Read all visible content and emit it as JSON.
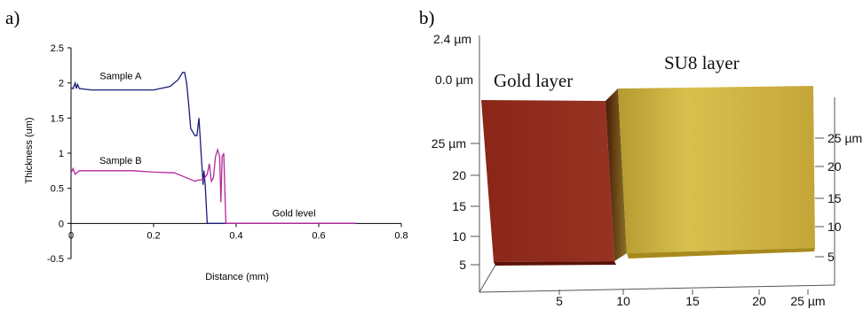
{
  "panel_a": {
    "label": "a)",
    "chart_data": {
      "type": "line",
      "xlabel": "Distance (mm)",
      "ylabel": "Thickness (um)",
      "xlim": [
        0,
        0.8
      ],
      "ylim": [
        -0.5,
        2.5
      ],
      "x_ticks": [
        "0",
        "0.2",
        "0.4",
        "0.6",
        "0.8"
      ],
      "y_ticks": [
        "-0.5",
        "0",
        "0.5",
        "1",
        "1.5",
        "2",
        "2.5"
      ],
      "grid": false,
      "annotations": [
        {
          "text": "Sample A",
          "x": 0.12,
          "y": 2.05
        },
        {
          "text": "Sample B",
          "x": 0.12,
          "y": 0.85
        },
        {
          "text": "Gold level",
          "x": 0.54,
          "y": 0.1
        }
      ],
      "series": [
        {
          "name": "Sample A",
          "color": "#1b1b7a",
          "x": [
            0,
            0.005,
            0.01,
            0.013,
            0.016,
            0.02,
            0.05,
            0.1,
            0.15,
            0.2,
            0.24,
            0.26,
            0.27,
            0.275,
            0.28,
            0.285,
            0.29,
            0.295,
            0.3,
            0.305,
            0.31,
            0.315,
            0.32,
            0.322,
            0.325,
            0.33,
            1.0
          ],
          "y": [
            1.93,
            1.92,
            2.0,
            1.92,
            1.98,
            1.92,
            1.9,
            1.9,
            1.9,
            1.9,
            1.95,
            2.05,
            2.15,
            2.15,
            2.0,
            1.7,
            1.35,
            1.3,
            1.25,
            1.25,
            1.5,
            1.0,
            0.55,
            0.75,
            0.55,
            0.0,
            0.0
          ]
        },
        {
          "name": "Sample B",
          "color": "#b32a9a",
          "x": [
            0,
            0.005,
            0.01,
            0.02,
            0.05,
            0.1,
            0.15,
            0.2,
            0.25,
            0.28,
            0.3,
            0.31,
            0.32,
            0.33,
            0.335,
            0.34,
            0.345,
            0.35,
            0.355,
            0.36,
            0.363,
            0.366,
            0.37,
            0.375,
            1.0
          ],
          "y": [
            0.72,
            0.78,
            0.7,
            0.75,
            0.75,
            0.75,
            0.75,
            0.73,
            0.72,
            0.65,
            0.6,
            0.62,
            0.62,
            0.7,
            0.85,
            0.6,
            0.65,
            0.95,
            1.05,
            0.95,
            0.3,
            0.95,
            1.0,
            0.0,
            0.0
          ]
        }
      ]
    }
  },
  "panel_b": {
    "label": "b)",
    "top_scale": [
      "2.4 µm",
      "0.0 µm"
    ],
    "layer_labels": [
      "Gold layer",
      "SU8 layer"
    ],
    "left_axis_ticks": [
      "25 µm",
      "20",
      "15",
      "10",
      "5"
    ],
    "right_axis_ticks": [
      "25 µm",
      "20",
      "15",
      "10",
      "5"
    ],
    "bottom_axis_ticks": [
      "5",
      "10",
      "15",
      "20",
      "25 µm"
    ],
    "colors": {
      "gold_top": "#8f2a1c",
      "gold_side": "#5c1208",
      "su8_top": "#c9b040",
      "su8_side": "#a88a1c",
      "step": "#6f5a1a"
    }
  }
}
